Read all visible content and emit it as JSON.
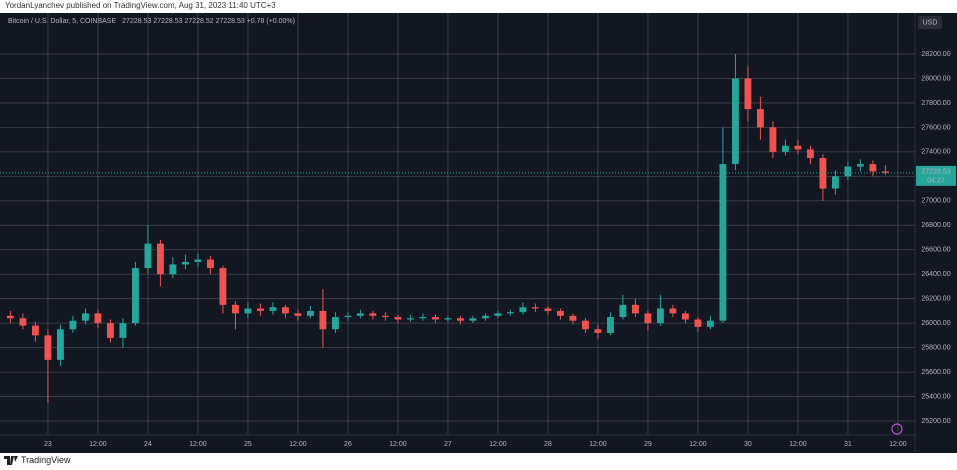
{
  "header": {
    "publisher_note": "YordanLyanchev published on TradingView.com, Aug 31, 2023 11:40 UTC+3"
  },
  "footer": {
    "brand": "TradingView"
  },
  "chart_data": {
    "type": "candlestick",
    "symbol": "Bitcoin / U.S. Dollar, 5, COINBASE",
    "legend_values": "27228.53  27228.53  27228.52  27228.53  +0.78 (+0.00%)",
    "currency": "USD",
    "countdown": "04:27",
    "last_price": {
      "value": 27228.53,
      "label": "27228.53"
    },
    "up_color": "#26a69a",
    "down_color": "#ef5350",
    "grid": true,
    "x": [
      -9,
      -6,
      -3,
      0,
      3,
      6,
      9,
      12,
      15,
      18,
      21,
      24,
      27,
      30,
      33,
      36,
      39,
      42,
      45,
      48,
      51,
      54,
      57,
      60,
      63,
      66,
      69,
      72,
      75,
      78,
      81,
      84,
      87,
      90,
      93,
      96,
      99,
      102,
      105,
      108,
      111,
      114,
      117,
      120,
      123,
      126,
      129,
      132,
      135,
      138,
      141,
      144,
      147,
      150,
      153,
      156,
      159,
      162,
      165,
      168,
      171,
      174,
      177,
      180,
      183,
      186,
      189,
      192,
      195,
      198,
      201
    ],
    "open": [
      26060,
      26040,
      25980,
      25900,
      25700,
      25950,
      26020,
      26080,
      26000,
      25880,
      26000,
      26450,
      26650,
      26400,
      26480,
      26500,
      26520,
      26450,
      26150,
      26080,
      26120,
      26100,
      26130,
      26080,
      26060,
      26100,
      25950,
      26050,
      26060,
      26080,
      26060,
      26050,
      26030,
      26040,
      26050,
      26030,
      26040,
      26020,
      26040,
      26060,
      26080,
      26090,
      26130,
      26120,
      26100,
      26060,
      26020,
      25950,
      25920,
      26050,
      26150,
      26080,
      26000,
      26120,
      26080,
      26030,
      25970,
      26020,
      27300,
      28000,
      27750,
      27600,
      27400,
      27450,
      27420,
      27350,
      27100,
      27200,
      27280,
      27300,
      27240
    ],
    "high": [
      26100,
      26080,
      26010,
      25950,
      25990,
      26060,
      26120,
      26110,
      26030,
      26040,
      26500,
      26800,
      26680,
      26540,
      26560,
      26570,
      26550,
      26470,
      26180,
      26170,
      26160,
      26170,
      26150,
      26110,
      26140,
      26280,
      26090,
      26090,
      26110,
      26100,
      26090,
      26070,
      26070,
      26080,
      26070,
      26060,
      26060,
      26060,
      26080,
      26100,
      26110,
      26170,
      26160,
      26140,
      26120,
      26080,
      26040,
      25990,
      26090,
      26230,
      26200,
      26100,
      26230,
      26150,
      26100,
      26050,
      26060,
      27600,
      28200,
      28100,
      27850,
      27650,
      27500,
      27500,
      27450,
      27380,
      27250,
      27320,
      27340,
      27330,
      27290
    ],
    "low": [
      26000,
      25950,
      25850,
      25350,
      25650,
      25920,
      25990,
      25960,
      25840,
      25800,
      25980,
      26400,
      26300,
      26370,
      26440,
      26460,
      26400,
      26080,
      25950,
      26040,
      26060,
      26070,
      26040,
      26020,
      26040,
      25800,
      25920,
      26020,
      26040,
      26030,
      26020,
      26000,
      26010,
      26020,
      26000,
      26010,
      25990,
      26000,
      26020,
      26040,
      26060,
      26070,
      26090,
      26070,
      26030,
      25990,
      25920,
      25870,
      25900,
      26030,
      26050,
      25940,
      25980,
      26050,
      26000,
      25930,
      25950,
      26000,
      27250,
      27650,
      27500,
      27350,
      27370,
      27380,
      27300,
      27000,
      27050,
      27170,
      27240,
      27200,
      27210
    ],
    "close": [
      26040,
      25980,
      25900,
      25700,
      25950,
      26020,
      26080,
      26000,
      25880,
      26000,
      26450,
      26650,
      26400,
      26480,
      26500,
      26520,
      26450,
      26150,
      26080,
      26120,
      26100,
      26130,
      26080,
      26060,
      26100,
      25950,
      26050,
      26060,
      26080,
      26060,
      26050,
      26030,
      26040,
      26050,
      26030,
      26040,
      26020,
      26040,
      26060,
      26080,
      26090,
      26130,
      26120,
      26100,
      26060,
      26020,
      25950,
      25920,
      26050,
      26150,
      26080,
      26000,
      26120,
      26080,
      26030,
      25970,
      26020,
      27300,
      28000,
      27750,
      27600,
      27400,
      27450,
      27420,
      27350,
      27100,
      27200,
      27280,
      27300,
      27240,
      27228.53
    ],
    "xlim": [
      -11.5,
      208.1
    ],
    "xticks": [
      {
        "value": 0,
        "label": "23"
      },
      {
        "value": 12,
        "label": "12:00"
      },
      {
        "value": 24,
        "label": "24"
      },
      {
        "value": 36,
        "label": "12:00"
      },
      {
        "value": 48,
        "label": "25"
      },
      {
        "value": 60,
        "label": "12:00"
      },
      {
        "value": 72,
        "label": "26"
      },
      {
        "value": 84,
        "label": "12:00"
      },
      {
        "value": 96,
        "label": "27"
      },
      {
        "value": 108,
        "label": "12:00"
      },
      {
        "value": 120,
        "label": "28"
      },
      {
        "value": 132,
        "label": "12:00"
      },
      {
        "value": 144,
        "label": "29"
      },
      {
        "value": 156,
        "label": "12:00"
      },
      {
        "value": 168,
        "label": "30"
      },
      {
        "value": 180,
        "label": "12:00"
      },
      {
        "value": 192,
        "label": "31"
      },
      {
        "value": 204,
        "label": "12:00"
      }
    ],
    "ylim": [
      25094,
      28527
    ],
    "yticks": [
      {
        "value": 25200,
        "label": "25200.00"
      },
      {
        "value": 25400,
        "label": "25400.00"
      },
      {
        "value": 25600,
        "label": "25600.00"
      },
      {
        "value": 25800,
        "label": "25800.00"
      },
      {
        "value": 26000,
        "label": "26000.00"
      },
      {
        "value": 26200,
        "label": "26200.00"
      },
      {
        "value": 26400,
        "label": "26400.00"
      },
      {
        "value": 26600,
        "label": "26600.00"
      },
      {
        "value": 26800,
        "label": "26800.00"
      },
      {
        "value": 27000,
        "label": "27000.00"
      },
      {
        "value": 27200,
        "label": "27200.00"
      },
      {
        "value": 27400,
        "label": "27400.00"
      },
      {
        "value": 27600,
        "label": "27600.00"
      },
      {
        "value": 27800,
        "label": "27800.00"
      },
      {
        "value": 28000,
        "label": "28000.00"
      },
      {
        "value": 28200,
        "label": "28200.00"
      }
    ]
  }
}
